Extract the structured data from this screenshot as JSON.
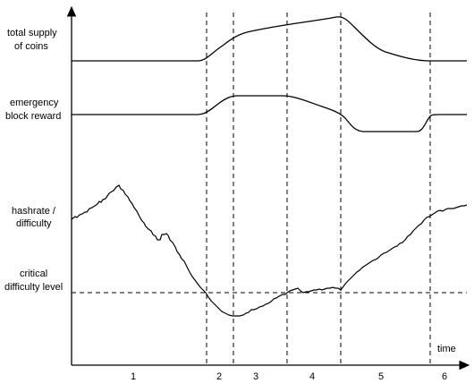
{
  "curve_labels": {
    "supply": [
      "total supply",
      "of coins"
    ],
    "reward": [
      "emergency",
      "block reward"
    ],
    "hashrate": [
      "hashrate /",
      "difficulty"
    ],
    "critical": [
      "critical",
      "difficulty level"
    ]
  },
  "axis": {
    "x_label": "time"
  },
  "phases": [
    "1",
    "2",
    "3",
    "4",
    "5",
    "6"
  ]
}
